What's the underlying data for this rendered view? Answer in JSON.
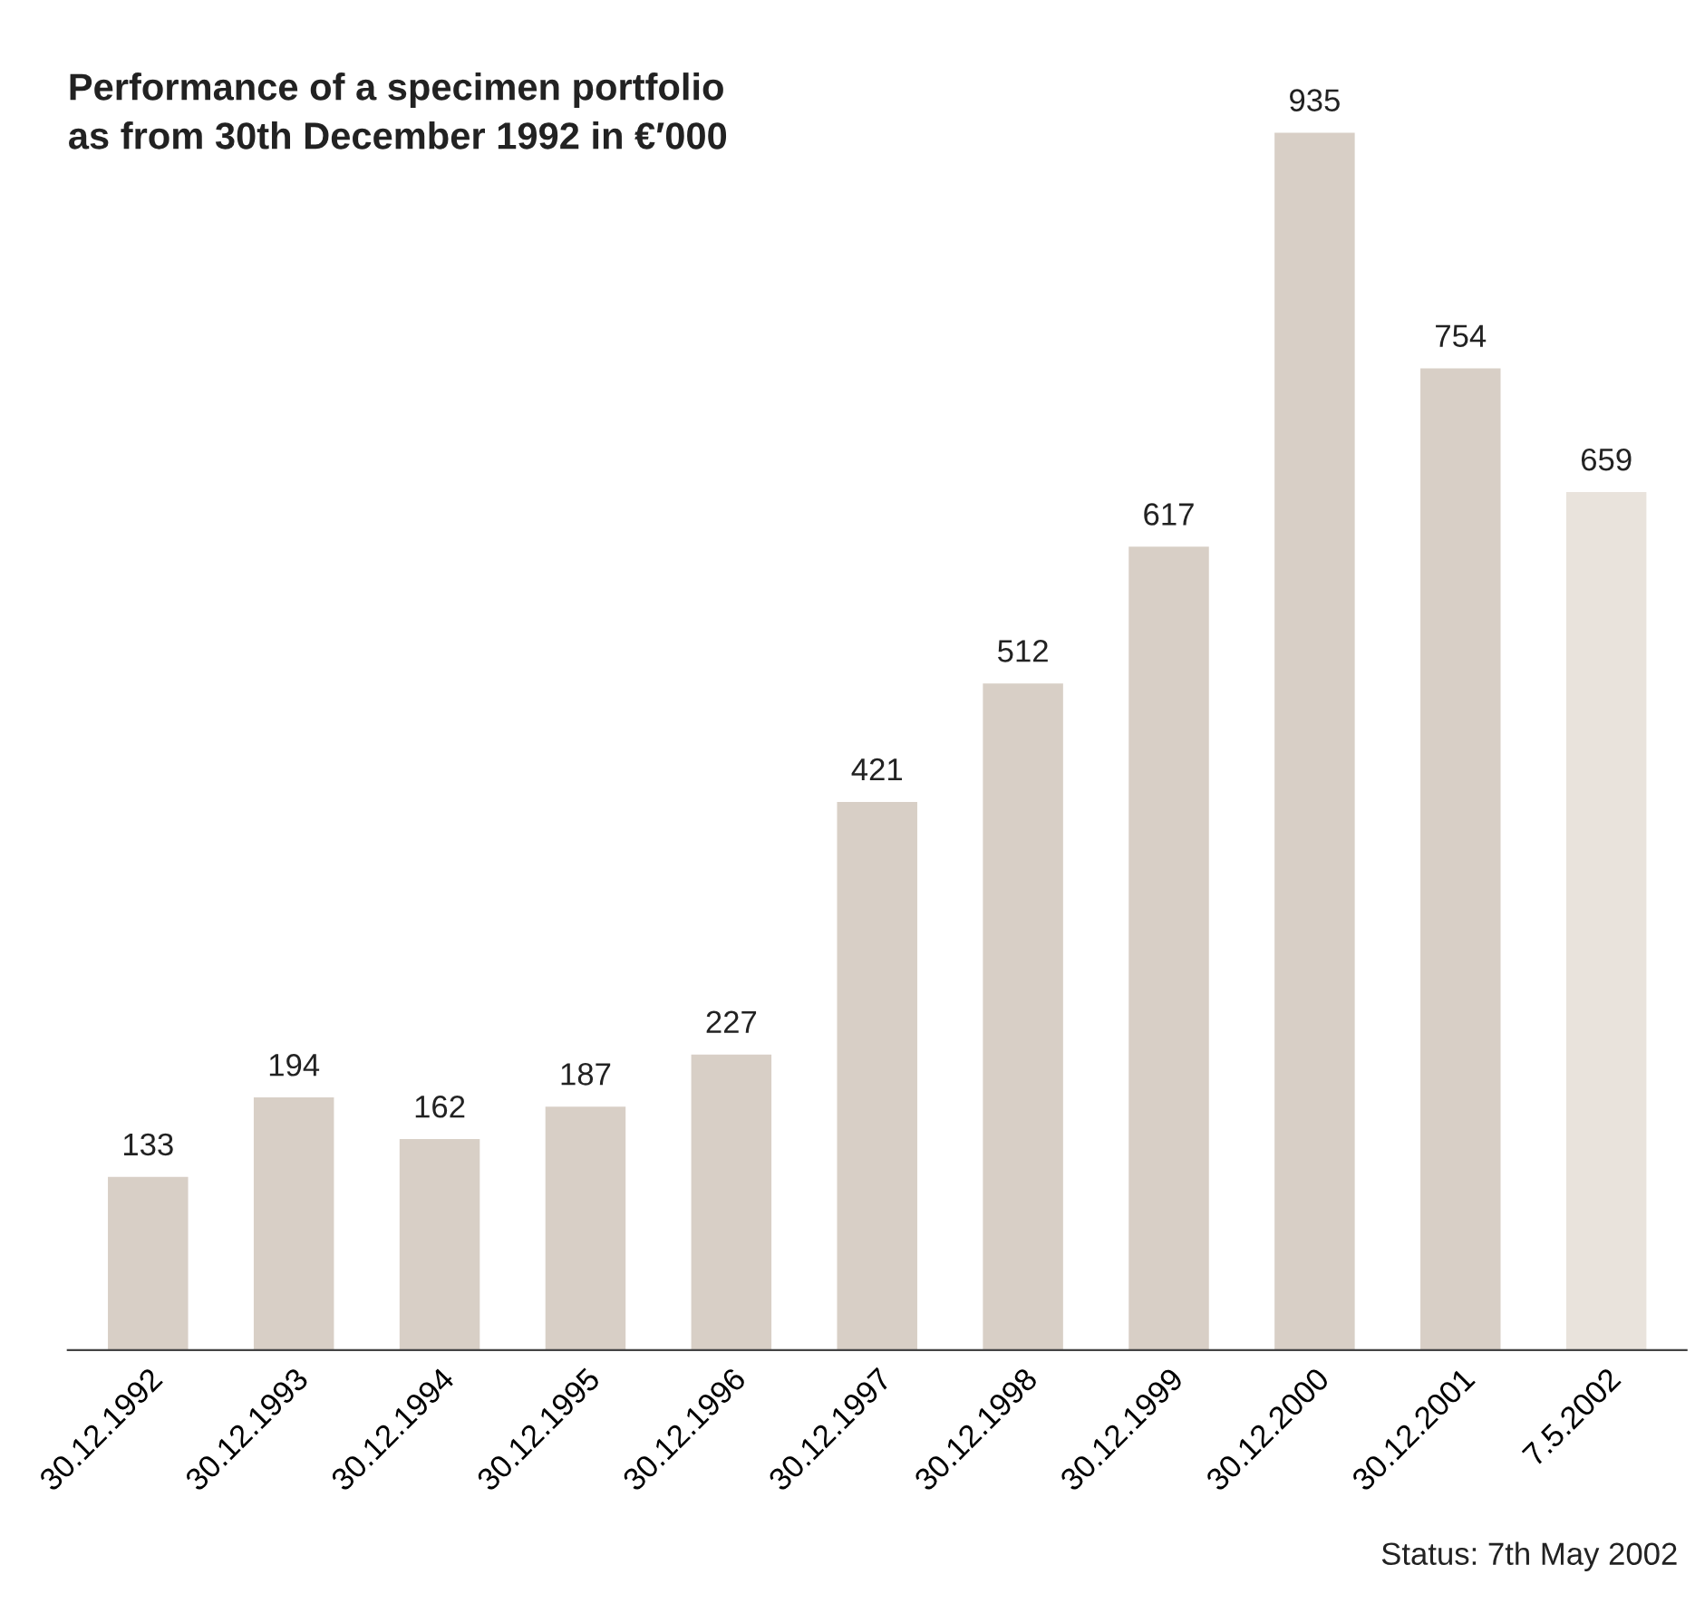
{
  "chart_data": {
    "type": "bar",
    "title": "Performance of a specimen portfolio\nas from 30th December 1992 in €′000",
    "categories": [
      "30.12.1992",
      "30.12.1993",
      "30.12.1994",
      "30.12.1995",
      "30.12.1996",
      "30.12.1997",
      "30.12.1998",
      "30.12.1999",
      "30.12.2000",
      "30.12.2001",
      "7.5.2002"
    ],
    "values": [
      133,
      194,
      162,
      187,
      227,
      421,
      512,
      617,
      935,
      754,
      659
    ],
    "colors": [
      "#d8cfc6",
      "#d8cfc6",
      "#d8cfc6",
      "#d8cfc6",
      "#d8cfc6",
      "#d8cfc6",
      "#d8cfc6",
      "#d8cfc6",
      "#d8cfc6",
      "#d8cfc6",
      "#e9e3dc"
    ],
    "data_labels": true,
    "grid": false,
    "legend": false,
    "annotations": [
      "Status: 7th May 2002"
    ]
  }
}
